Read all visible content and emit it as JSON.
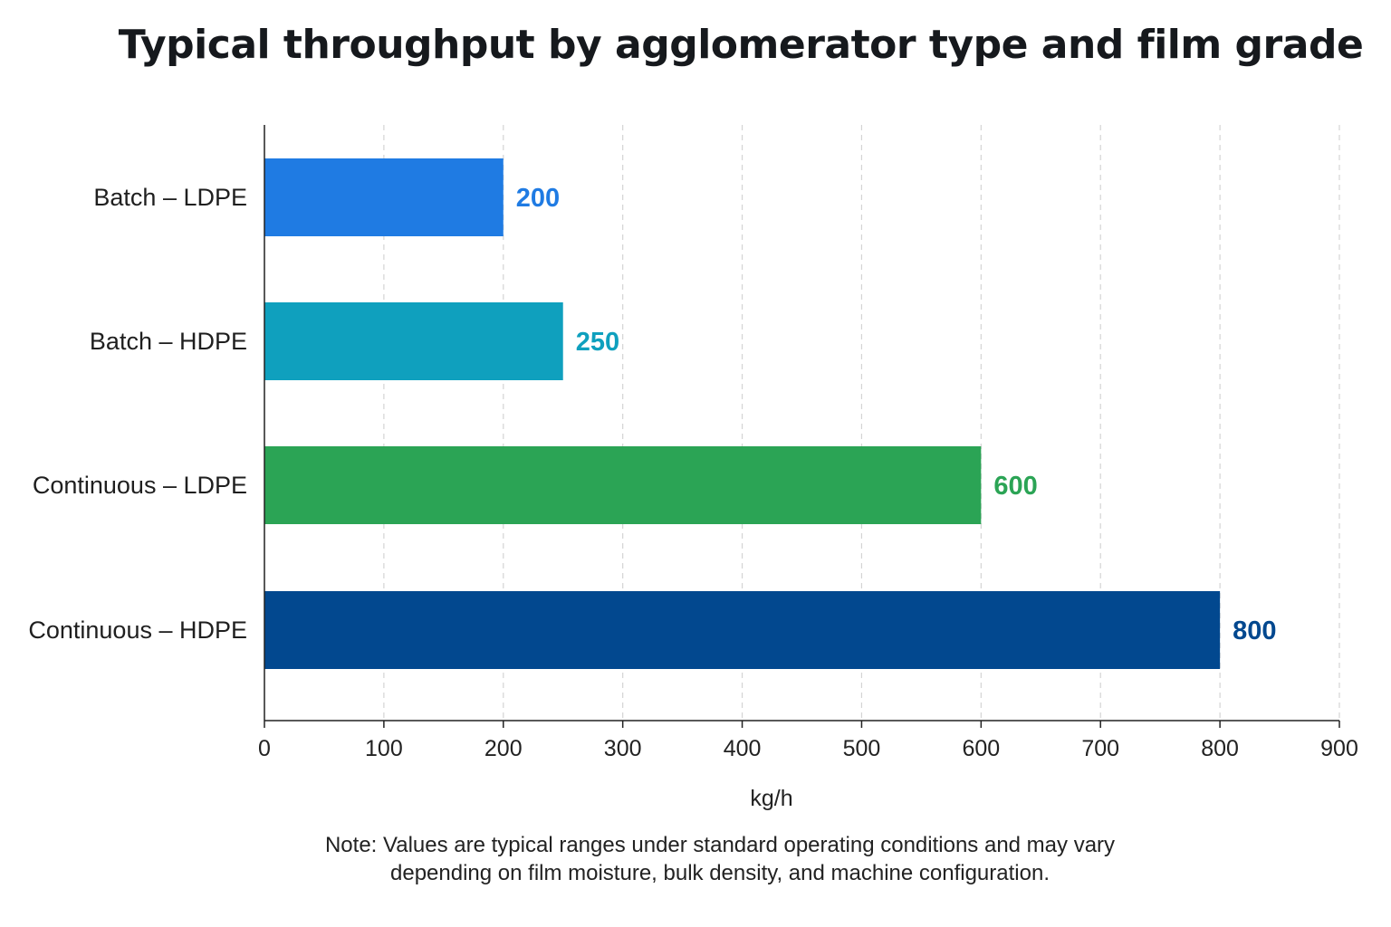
{
  "chart_data": {
    "type": "bar",
    "orientation": "horizontal",
    "title": "Typical throughput by agglomerator type and film grade",
    "xlabel": "kg/h",
    "ylabel": "",
    "categories": [
      "Batch – LDPE",
      "Batch – HDPE",
      "Continuous – LDPE",
      "Continuous – HDPE"
    ],
    "values": [
      200,
      250,
      600,
      800
    ],
    "value_labels": [
      "200",
      "250",
      "600",
      "800"
    ],
    "colors": [
      "#1f7be3",
      "#0fa0be",
      "#2ba455",
      "#02488f"
    ],
    "xlim": [
      0,
      900
    ],
    "xticks": [
      0,
      100,
      200,
      300,
      400,
      500,
      600,
      700,
      800,
      900
    ],
    "xtick_labels": [
      "0",
      "100",
      "200",
      "300",
      "400",
      "500",
      "600",
      "700",
      "800",
      "900"
    ],
    "grid": "vertical dashed",
    "legend": "none",
    "note": "Note: Values are typical ranges under standard operating conditions and may vary depending on film moisture, bulk density, and machine configuration."
  }
}
